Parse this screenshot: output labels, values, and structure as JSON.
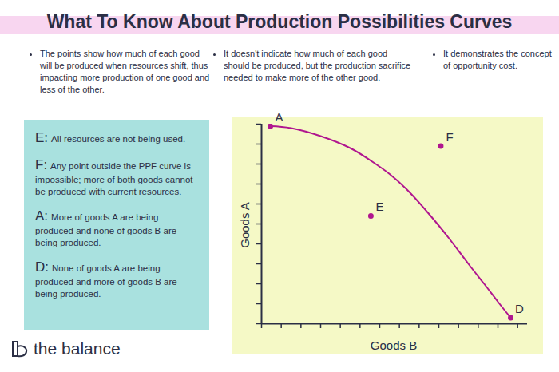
{
  "title": "What To Know About Production Possibilities Curves",
  "notes": [
    "The points show how much of each good will be produced when resources shift, thus impacting more production of one good and less of the other.",
    "It doesn't indicate how much of each good should be produced, but the production sacrifice needed to make more of the other good.",
    "It demonstrates the concept of opportunity cost."
  ],
  "legend_items": [
    {
      "letter": "E:",
      "text": "All resources are not being used."
    },
    {
      "letter": "F:",
      "text": "Any point outside the PPF curve is impossible; more of both goods cannot be produced with current resources."
    },
    {
      "letter": "A:",
      "text": "More of goods A are being produced and none of goods B are being produced."
    },
    {
      "letter": "D:",
      "text": "None of goods A are being produced and more of goods B are being produced."
    }
  ],
  "brand": "the balance",
  "chart_data": {
    "type": "line",
    "x_label": "Goods B",
    "y_label": "Goods A",
    "x": [
      0.45,
      1.5,
      3,
      4.5,
      5.5,
      6.5,
      7.5,
      8.5,
      9.5,
      10.5,
      11.3,
      12,
      12.65
    ],
    "values": [
      9.9,
      9.8,
      9.4,
      8.8,
      8.2,
      7.5,
      6.6,
      5.5,
      4.3,
      3.0,
      2.0,
      1.1,
      0.3
    ],
    "color": "#b0168f",
    "points": [
      {
        "label": "A",
        "x": 0.45,
        "y": 9.9
      },
      {
        "label": "E",
        "x": 5.55,
        "y": 5.4
      },
      {
        "label": "F",
        "x": 9.1,
        "y": 8.9
      },
      {
        "label": "D",
        "x": 12.65,
        "y": 0.3
      }
    ],
    "xlim": [
      0,
      13.5
    ],
    "ylim": [
      0,
      10
    ],
    "xticks": [
      0,
      1,
      2,
      3,
      4,
      5,
      6,
      7,
      8,
      9,
      10,
      11,
      12,
      13
    ],
    "yticks": [
      0,
      1,
      2,
      3,
      4,
      5,
      6,
      7,
      8,
      9,
      10
    ],
    "tick_labels": false,
    "grid": false
  }
}
